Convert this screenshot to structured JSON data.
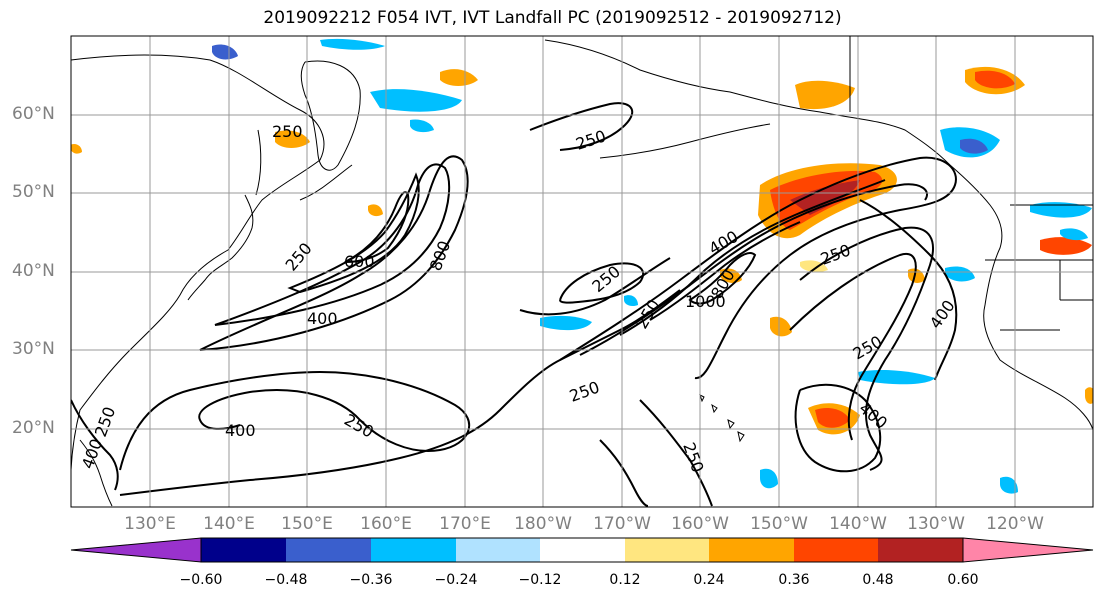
{
  "title": "2019092212 F054 IVT, IVT Landfall PC (2019092512 - 2019092712)",
  "lat_labels": [
    "60°N",
    "50°N",
    "40°N",
    "30°N",
    "20°N"
  ],
  "lon_labels": [
    "130°E",
    "140°E",
    "150°E",
    "160°E",
    "170°E",
    "180°W",
    "170°W",
    "160°W",
    "150°W",
    "140°W",
    "130°W",
    "120°W"
  ],
  "contour_labels": [
    "250",
    "250",
    "250",
    "600",
    "800",
    "400",
    "250",
    "400",
    "1000",
    "800",
    "250",
    "250",
    "400",
    "250",
    "400",
    "400",
    "250",
    "250",
    "250",
    "250",
    "400"
  ],
  "colorbar": {
    "ticks": [
      "−0.60",
      "−0.48",
      "−0.36",
      "−0.24",
      "−0.12",
      "0.12",
      "0.24",
      "0.36",
      "0.48",
      "0.60"
    ],
    "colors": [
      "#9932cc",
      "#00008b",
      "#3a5fcd",
      "#00bfff",
      "#b0e2ff",
      "#ffffff",
      "#ffe680",
      "#ffa500",
      "#ff4500",
      "#b22222",
      "#ff85a8"
    ]
  }
}
